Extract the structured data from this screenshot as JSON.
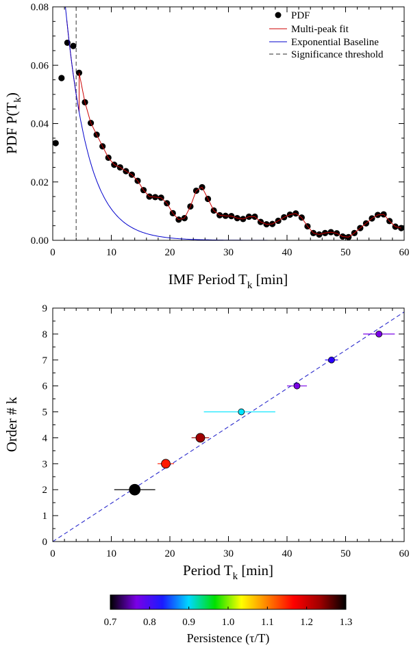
{
  "chart_data": [
    {
      "type": "scatter",
      "title": "",
      "xlabel": "IMF Period T",
      "xlabel_sub": "k",
      "xlabel_unit": " [min]",
      "ylabel": "PDF P(T",
      "ylabel_sub": "k",
      "ylabel_end": ")",
      "xlim": [
        0,
        60
      ],
      "ylim": [
        0,
        0.08
      ],
      "xticks": [
        "0",
        "10",
        "20",
        "30",
        "40",
        "50",
        "60"
      ],
      "yticks": [
        "0.00",
        "0.02",
        "0.04",
        "0.06",
        "0.08"
      ],
      "significance_threshold_x": 4.0,
      "legend_position": "top-right",
      "legend": [
        {
          "label": "PDF",
          "style": "dot",
          "color": "#000000"
        },
        {
          "label": "Multi-peak fit",
          "style": "line",
          "color": "#cc0000"
        },
        {
          "label": "Exponential Baseline",
          "style": "line",
          "color": "#0000cc"
        },
        {
          "label": "Significance threshold",
          "style": "dash",
          "color": "#555555"
        }
      ],
      "pdf_points": {
        "x": [
          0.5,
          1.5,
          2.5,
          3.5,
          4.5,
          5.5,
          6.5,
          7.5,
          8.5,
          9.5,
          10.5,
          11.5,
          12.5,
          13.5,
          14.5,
          15.5,
          16.5,
          17.5,
          18.5,
          19.5,
          20.5,
          21.5,
          22.5,
          23.5,
          24.5,
          25.5,
          26.5,
          27.5,
          28.5,
          29.5,
          30.5,
          31.5,
          32.5,
          33.5,
          34.5,
          35.5,
          36.5,
          37.5,
          38.5,
          39.5,
          40.5,
          41.5,
          42.5,
          43.5,
          44.5,
          45.5,
          46.5,
          47.5,
          48.5,
          49.5,
          50.5,
          51.5,
          52.5,
          53.5,
          54.5,
          55.5,
          56.5,
          57.5,
          58.5,
          59.5
        ],
        "y": [
          0.0333,
          0.0556,
          0.0677,
          0.0666,
          0.0574,
          0.0473,
          0.0402,
          0.0362,
          0.0322,
          0.0283,
          0.0259,
          0.025,
          0.0237,
          0.0225,
          0.0204,
          0.0172,
          0.015,
          0.0148,
          0.0146,
          0.0127,
          0.0093,
          0.0071,
          0.0076,
          0.0116,
          0.017,
          0.0182,
          0.0142,
          0.0102,
          0.0086,
          0.0084,
          0.0083,
          0.0076,
          0.0073,
          0.0081,
          0.0081,
          0.0063,
          0.0055,
          0.0056,
          0.0067,
          0.0079,
          0.0088,
          0.0092,
          0.0078,
          0.0048,
          0.0025,
          0.002,
          0.0025,
          0.0028,
          0.0024,
          0.0013,
          0.0011,
          0.0025,
          0.0042,
          0.0058,
          0.0075,
          0.0087,
          0.0089,
          0.0066,
          0.0047,
          0.0042
        ]
      },
      "exponential_baseline": {
        "amplitude": 0.1395,
        "decay_minutes": 3.9
      }
    },
    {
      "type": "scatter",
      "title": "",
      "xlabel": "Period T",
      "xlabel_sub": "k",
      "xlabel_unit": " [min]",
      "ylabel": "Order # k",
      "xlim": [
        0,
        60
      ],
      "ylim": [
        0,
        9
      ],
      "xticks": [
        "0",
        "10",
        "20",
        "30",
        "40",
        "50",
        "60"
      ],
      "yticks": [
        "0",
        "1",
        "2",
        "3",
        "4",
        "5",
        "6",
        "7",
        "8",
        "9"
      ],
      "fit_line_slope": 0.1475,
      "points": [
        {
          "k": 2,
          "period": 14.0,
          "err_low": 3.5,
          "err_high": 3.5,
          "persistence": 1.3,
          "color": "#000000",
          "size": 8
        },
        {
          "k": 3,
          "period": 19.3,
          "err_low": 1.4,
          "err_high": 1.4,
          "persistence": 1.12,
          "color": "#ff1a00",
          "size": 6.5
        },
        {
          "k": 4,
          "period": 25.2,
          "err_low": 1.5,
          "err_high": 1.5,
          "persistence": 1.19,
          "color": "#a00000",
          "size": 6.5
        },
        {
          "k": 5,
          "period": 32.2,
          "err_low": 6.4,
          "err_high": 5.8,
          "persistence": 0.88,
          "color": "#00e5ff",
          "size": 4.5
        },
        {
          "k": 6,
          "period": 41.7,
          "err_low": 1.7,
          "err_high": 1.7,
          "persistence": 0.77,
          "color": "#7a00e6",
          "size": 4.5
        },
        {
          "k": 7,
          "period": 47.6,
          "err_low": 1.1,
          "err_high": 1.1,
          "persistence": 0.8,
          "color": "#2a00ff",
          "size": 4.5
        },
        {
          "k": 8,
          "period": 55.7,
          "err_low": 2.7,
          "err_high": 2.7,
          "persistence": 0.77,
          "color": "#7a00e6",
          "size": 4.5
        }
      ]
    },
    {
      "type": "colorbar",
      "title": "Persistence (τ/T)",
      "range": [
        0.7,
        1.3
      ],
      "ticks": [
        "0.7",
        "0.8",
        "0.9",
        "1.0",
        "1.1",
        "1.2",
        "1.3"
      ],
      "colors": [
        "#000000",
        "#7a00e6",
        "#1a1aff",
        "#00d8ff",
        "#00e000",
        "#ffff00",
        "#ff8000",
        "#ff0000",
        "#a00000",
        "#000000"
      ]
    }
  ]
}
